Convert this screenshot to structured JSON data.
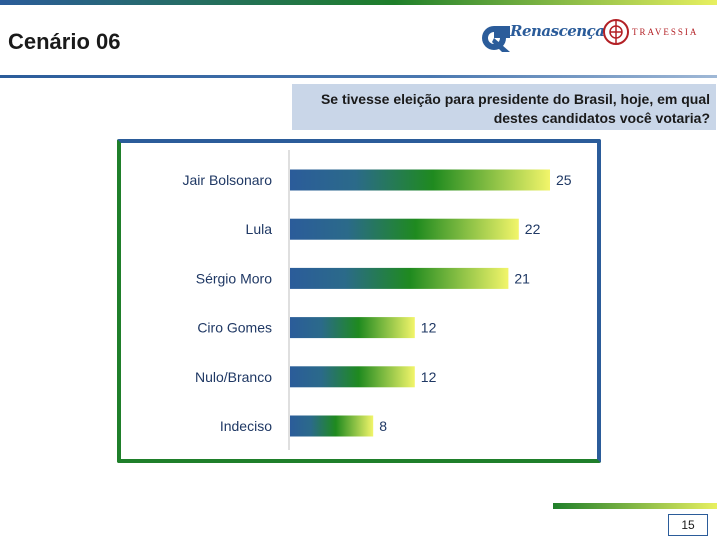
{
  "header": {
    "title": "Cenário 06",
    "logo_primary": "Renascença",
    "logo_secondary": "TRAVESSIA"
  },
  "question": "Se tivesse eleição para presidente do Brasil, hoje, em qual destes candidatos você votaria?",
  "page_number": "15",
  "colors": {
    "bar_start": "#2b5c9a",
    "bar_mid": "#1f8a1f",
    "bar_end": "#f2f56a",
    "frame_blue": "#2b5c9a",
    "frame_green": "#1f7f2a"
  },
  "chart_data": {
    "type": "bar",
    "orientation": "horizontal",
    "categories": [
      "Jair Bolsonaro",
      "Lula",
      "Sérgio Moro",
      "Ciro Gomes",
      "Nulo/Branco",
      "Indeciso"
    ],
    "values": [
      25,
      22,
      21,
      12,
      12,
      8
    ],
    "title": "",
    "xlabel": "",
    "ylabel": "",
    "xlim": [
      0,
      25
    ],
    "grid": false,
    "legend": "none"
  }
}
